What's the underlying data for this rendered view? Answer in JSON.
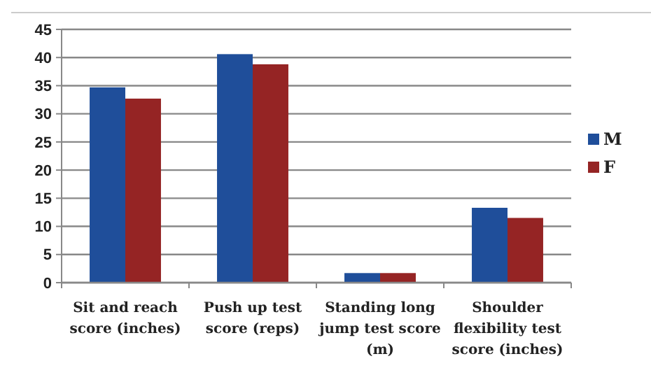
{
  "chart_data": {
    "type": "bar",
    "categories": [
      "Sit and reach score (inches)",
      "Push up test score (reps)",
      "Standing long jump test score (m)",
      "Shoulder flexibility test score (inches)"
    ],
    "series": [
      {
        "name": "M",
        "color": "#1f4e9a",
        "values": [
          34.7,
          40.6,
          1.7,
          13.3
        ]
      },
      {
        "name": "F",
        "color": "#952424",
        "values": [
          32.7,
          38.8,
          1.7,
          11.5
        ]
      }
    ],
    "ylim": [
      0,
      45
    ],
    "yticks": [
      0,
      5,
      10,
      15,
      20,
      25,
      30,
      35,
      40,
      45
    ],
    "grid": "y",
    "legend": "right"
  }
}
